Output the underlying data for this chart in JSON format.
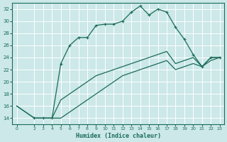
{
  "xlabel": "Humidex (Indice chaleur)",
  "background_color": "#cce8e8",
  "grid_color": "#ffffff",
  "line_color": "#1a6b5a",
  "xlim": [
    -0.5,
    23.5
  ],
  "ylim": [
    13,
    33
  ],
  "xticks": [
    0,
    2,
    3,
    4,
    5,
    6,
    7,
    8,
    9,
    10,
    11,
    12,
    13,
    14,
    15,
    16,
    17,
    18,
    19,
    20,
    21,
    22,
    23
  ],
  "yticks": [
    14,
    16,
    18,
    20,
    22,
    24,
    26,
    28,
    30,
    32
  ],
  "series": [
    {
      "x": [
        2,
        3,
        4,
        5,
        6,
        7,
        8,
        9,
        10,
        11,
        12,
        13,
        14,
        15,
        16,
        17,
        18,
        19,
        20,
        21,
        22,
        23
      ],
      "y": [
        14,
        14,
        14,
        23,
        26,
        27.3,
        27.3,
        29.3,
        29.5,
        29.5,
        30,
        31.5,
        32.5,
        31,
        32,
        31.5,
        29,
        27,
        24.5,
        22.5,
        24,
        24
      ],
      "marker": true
    },
    {
      "x": [
        0,
        2,
        3,
        4,
        5,
        6,
        7,
        8,
        9,
        10,
        11,
        12,
        13,
        14,
        15,
        16,
        17,
        18,
        19,
        20,
        21,
        22,
        23
      ],
      "y": [
        16,
        14,
        14,
        14,
        17,
        18,
        19,
        20,
        21,
        21.5,
        22,
        22.5,
        23,
        23.5,
        24,
        24.5,
        25,
        23,
        23.5,
        24,
        22.5,
        24,
        24
      ],
      "marker": false
    },
    {
      "x": [
        0,
        2,
        3,
        4,
        5,
        6,
        7,
        8,
        9,
        10,
        11,
        12,
        13,
        14,
        15,
        16,
        17,
        18,
        19,
        20,
        21,
        22,
        23
      ],
      "y": [
        16,
        14,
        14,
        14,
        14,
        15,
        16,
        17,
        18,
        19,
        20,
        21,
        21.5,
        22,
        22.5,
        23,
        23.5,
        22,
        22.5,
        23,
        22.5,
        23.5,
        24
      ],
      "marker": false
    }
  ]
}
